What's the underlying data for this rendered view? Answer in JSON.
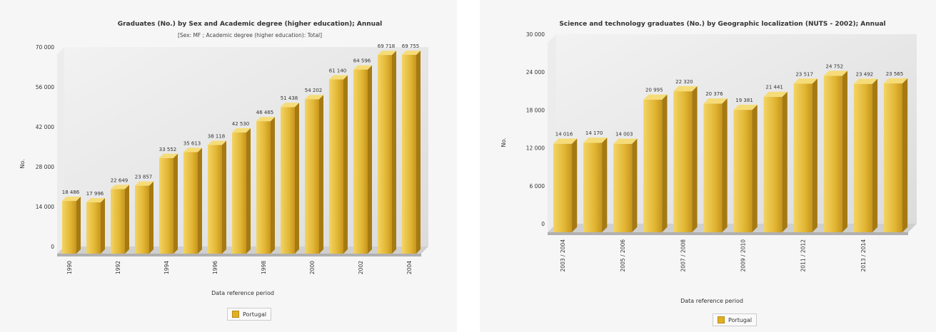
{
  "chart_data": [
    {
      "type": "bar",
      "title": "Graduates (No.) by Sex and Academic degree (higher education); Annual",
      "subtitle": "[Sex: MF ; Academic degree (higher education): Total]",
      "xlabel": "Data reference period",
      "ylabel": "No.",
      "ylim": [
        0,
        70000
      ],
      "yticks": [
        0,
        14000,
        28000,
        42000,
        56000,
        70000
      ],
      "ytick_labels": [
        "0",
        "14 000",
        "28 000",
        "42 000",
        "56 000",
        "70 000"
      ],
      "categories": [
        "1990",
        "1991",
        "1992",
        "1993",
        "1994",
        "1995",
        "1996",
        "1997",
        "1998",
        "1999",
        "2000",
        "2001",
        "2002",
        "2003",
        "2004"
      ],
      "tick_labels": [
        "1990",
        "",
        "1992",
        "",
        "1994",
        "",
        "1996",
        "",
        "1998",
        "",
        "2000",
        "",
        "2002",
        "",
        "2004"
      ],
      "series": [
        {
          "name": "Portugal",
          "values": [
            18486,
            17996,
            22649,
            23857,
            33552,
            35613,
            38118,
            42530,
            46465,
            51438,
            54202,
            61140,
            64596,
            69718,
            69755
          ],
          "labels": [
            "18 486",
            "17 996",
            "22 649",
            "23 857",
            "33 552",
            "35 613",
            "38 118",
            "42 530",
            "46 465",
            "51 438",
            "54 202",
            "61 140",
            "64 596",
            "69 718",
            "69 755"
          ]
        }
      ],
      "legend": "bottom",
      "grid": false
    },
    {
      "type": "bar",
      "title": "Science and technology graduates (No.) by Geographic localization (NUTS - 2002); Annual",
      "xlabel": "Data reference period",
      "ylabel": "No.",
      "ylim": [
        0,
        30000
      ],
      "yticks": [
        0,
        6000,
        12000,
        18000,
        24000,
        30000
      ],
      "ytick_labels": [
        "0",
        "6 000",
        "12 000",
        "18 000",
        "24 000",
        "30 000"
      ],
      "categories": [
        "2003 / 2004",
        "2004 / 2005",
        "2005 / 2006",
        "2006 / 2007",
        "2007 / 2008",
        "2008 / 2009",
        "2009 / 2010",
        "2010 / 2011",
        "2011 / 2012",
        "2012 / 2013",
        "2013 / 2014",
        "2014 / 2015"
      ],
      "tick_labels": [
        "2003 / 2004",
        "",
        "2005 / 2006",
        "",
        "2007 / 2008",
        "",
        "2009 / 2010",
        "",
        "2011 / 2012",
        "",
        "2013 / 2014",
        ""
      ],
      "series": [
        {
          "name": "Portugal",
          "values": [
            14016,
            14170,
            14003,
            20995,
            22320,
            20376,
            19381,
            21441,
            23517,
            24752,
            23492,
            23565
          ],
          "labels": [
            "14 016",
            "14 170",
            "14 003",
            "20 995",
            "22 320",
            "20 376",
            "19 381",
            "21 441",
            "23 517",
            "24 752",
            "23 492",
            "23 565"
          ]
        }
      ],
      "legend": "bottom",
      "grid": false
    }
  ],
  "colors": {
    "bar_front_top": "#f0d060",
    "bar_front_bottom": "#b8860b",
    "bar_side": "#9a6c10",
    "bar_top": "#f5d870",
    "plot_bg": "#e4e4e4",
    "floor": "#c8c8c8"
  }
}
